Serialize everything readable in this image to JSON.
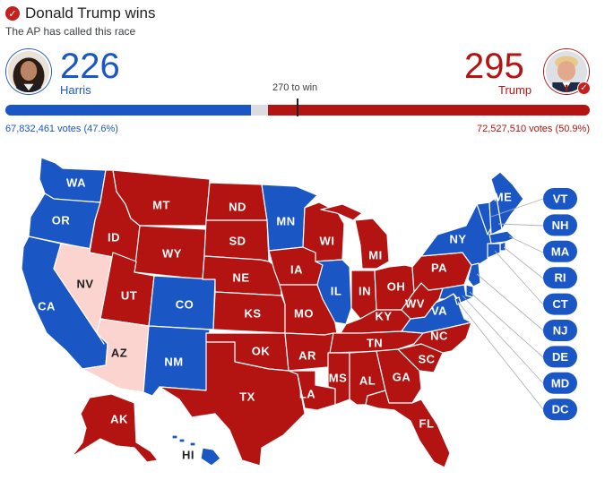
{
  "header": {
    "title": "Donald Trump wins",
    "subtitle": "The AP has called this race"
  },
  "colors": {
    "dem": "#1a57c4",
    "rep": "#b31412",
    "lean_rep": "#fbd4d0"
  },
  "candidates": {
    "dem": {
      "name": "Harris",
      "electoral_votes": "226",
      "votes": "67,832,461 votes (47.6%)",
      "ev_fraction": 0.42
    },
    "rep": {
      "name": "Trump",
      "electoral_votes": "295",
      "votes": "72,527,510 votes (50.9%)",
      "ev_fraction": 0.55
    }
  },
  "threshold_label": "270 to win",
  "states": {
    "WA": "dem",
    "OR": "dem",
    "CA": "dem",
    "NV": "lean_rep",
    "ID": "rep",
    "MT": "rep",
    "WY": "rep",
    "UT": "rep",
    "AZ": "lean_rep",
    "CO": "dem",
    "NM": "dem",
    "ND": "rep",
    "SD": "rep",
    "NE": "rep",
    "KS": "rep",
    "OK": "rep",
    "TX": "rep",
    "MN": "dem",
    "IA": "rep",
    "MO": "rep",
    "AR": "rep",
    "LA": "rep",
    "WI": "rep",
    "IL": "dem",
    "MI": "rep",
    "IN": "rep",
    "OH": "rep",
    "KY": "rep",
    "TN": "rep",
    "MS": "rep",
    "AL": "rep",
    "GA": "rep",
    "FL": "rep",
    "SC": "rep",
    "NC": "rep",
    "VA": "dem",
    "WV": "rep",
    "PA": "rep",
    "NY": "dem",
    "ME": "dem",
    "AK": "rep",
    "HI": "dem"
  },
  "small_states": [
    "VT",
    "NH",
    "MA",
    "RI",
    "CT",
    "NJ",
    "DE",
    "MD",
    "DC"
  ]
}
